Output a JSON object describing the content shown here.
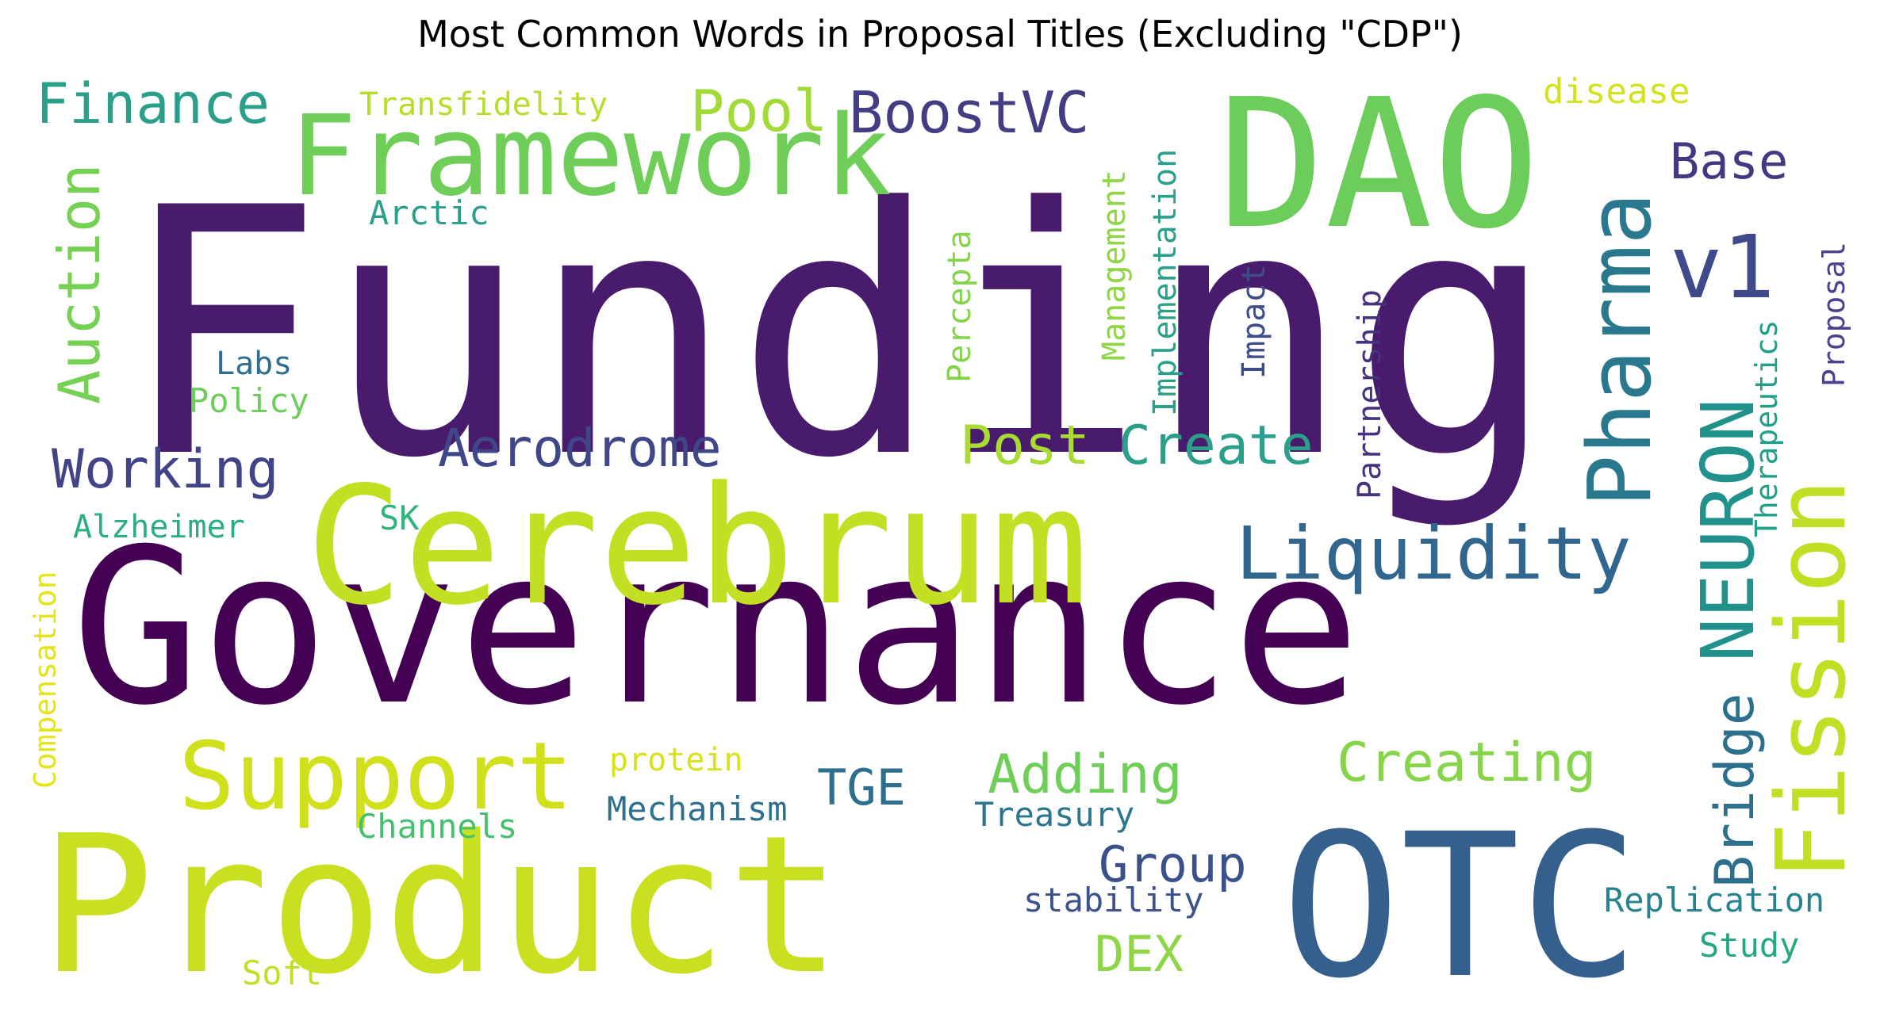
{
  "chart_data": {
    "type": "wordcloud",
    "title": "Most Common Words in Proposal Titles (Excluding \"CDP\")",
    "colormap": "viridis",
    "words": [
      {
        "text": "Funding",
        "color": "#481b6d"
      },
      {
        "text": "Governance",
        "color": "#440154"
      },
      {
        "text": "Product",
        "color": "#c8e020"
      },
      {
        "text": "OTC",
        "color": "#35608d"
      },
      {
        "text": "Cerebrum",
        "color": "#c2df23"
      },
      {
        "text": "DAO",
        "color": "#6ccd5a"
      },
      {
        "text": "Framework",
        "color": "#6ece58"
      },
      {
        "text": "Pharma",
        "color": "#2a788e"
      },
      {
        "text": "Fission",
        "color": "#c0df25"
      },
      {
        "text": "v1",
        "color": "#3e4a89"
      },
      {
        "text": "NEURON",
        "color": "#21918c"
      },
      {
        "text": "Liquidity",
        "color": "#31678e"
      },
      {
        "text": "Support",
        "color": "#d0e11c"
      },
      {
        "text": "Finance",
        "color": "#2a9f8a"
      },
      {
        "text": "Pool",
        "color": "#a2da37"
      },
      {
        "text": "BoostVC",
        "color": "#433d84"
      },
      {
        "text": "Base",
        "color": "#453781"
      },
      {
        "text": "Auction",
        "color": "#75d054"
      },
      {
        "text": "Working",
        "color": "#414487"
      },
      {
        "text": "Aerodrome",
        "color": "#3f4788"
      },
      {
        "text": "Post",
        "color": "#a8db34"
      },
      {
        "text": "Create",
        "color": "#2a9f8a"
      },
      {
        "text": "Creating",
        "color": "#86d549"
      },
      {
        "text": "Adding",
        "color": "#6ece58"
      },
      {
        "text": "Bridge",
        "color": "#2d708e"
      },
      {
        "text": "Group",
        "color": "#3b518b"
      },
      {
        "text": "TGE",
        "color": "#2e6f8e"
      },
      {
        "text": "DEX",
        "color": "#8ed645"
      },
      {
        "text": "Transfidelity",
        "color": "#b5de2b"
      },
      {
        "text": "disease",
        "color": "#d2e21b"
      },
      {
        "text": "Arctic",
        "color": "#2a9f8a"
      },
      {
        "text": "Management",
        "color": "#8ed645"
      },
      {
        "text": "Implementation",
        "color": "#2a9f8a"
      },
      {
        "text": "Percepta",
        "color": "#84d44b"
      },
      {
        "text": "Impact",
        "color": "#3e4c8a"
      },
      {
        "text": "Partnership",
        "color": "#46327e"
      },
      {
        "text": "Therapeutics",
        "color": "#1fa187"
      },
      {
        "text": "Proposal",
        "color": "#4d4290"
      },
      {
        "text": "Labs",
        "color": "#2e6f8e"
      },
      {
        "text": "Policy",
        "color": "#6ccd5a"
      },
      {
        "text": "Alzheimer",
        "color": "#29af7f"
      },
      {
        "text": "SK",
        "color": "#2fb47c"
      },
      {
        "text": "Compensation",
        "color": "#e5e419"
      },
      {
        "text": "protein",
        "color": "#d8e219"
      },
      {
        "text": "Mechanism",
        "color": "#2d708e"
      },
      {
        "text": "Treasury",
        "color": "#2a768e"
      },
      {
        "text": "Channels",
        "color": "#46c06f"
      },
      {
        "text": "stability",
        "color": "#3b528b"
      },
      {
        "text": "Replication",
        "color": "#26828e"
      },
      {
        "text": "Study",
        "color": "#22a884"
      },
      {
        "text": "Soft",
        "color": "#c0df25"
      }
    ]
  }
}
